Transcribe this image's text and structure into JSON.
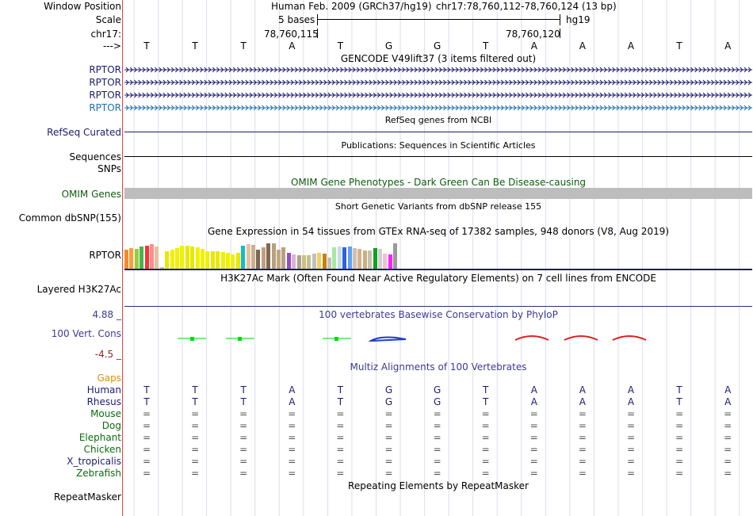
{
  "ruler": {
    "window_position_label": "Window Position",
    "scale_label": "Scale",
    "chrom_label": "chr17:",
    "arrow_label": "--->",
    "assembly": "Human Feb. 2009 (GRCh37/hg19)",
    "position": "chr17:78,760,112-78,760,124 (13 bp)",
    "scale_text": "5 bases",
    "db": "hg19",
    "pos_left": "78,760,115",
    "pos_right": "78,760,120"
  },
  "bases": [
    "T",
    "T",
    "T",
    "A",
    "T",
    "G",
    "G",
    "T",
    "A",
    "A",
    "A",
    "T",
    "A"
  ],
  "gencode": {
    "title": "GENCODE V49lift37 (3 items filtered out)",
    "items": [
      "RPTOR",
      "RPTOR",
      "RPTOR",
      "RPTOR"
    ],
    "colors": [
      "#1c1c70",
      "#1c1c70",
      "#1c1c70",
      "#1f6fa8"
    ]
  },
  "refseq": {
    "title": "RefSeq genes from NCBI",
    "label": "RefSeq Curated"
  },
  "publications": {
    "title": "Publications: Sequences in Scientific Articles",
    "label": "Sequences"
  },
  "snps_label": "SNPs",
  "omim": {
    "title": "OMIM Gene Phenotypes - Dark Green Can Be Disease-causing",
    "label": "OMIM Genes"
  },
  "dbsnp": {
    "title": "Short Genetic Variants from dbSNP release 155",
    "label": "Common dbSNP(155)"
  },
  "gtex": {
    "title": "Gene Expression in 54 tissues from GTEx RNA-seq of 17382 samples, 948 donors (V8, Aug 2019)",
    "label": "RPTOR",
    "levels": [
      0.6,
      0.65,
      0.62,
      0.7,
      0.72,
      0.78,
      0.7,
      0.05,
      0.55,
      0.6,
      0.66,
      0.72,
      0.72,
      0.7,
      0.68,
      0.62,
      0.55,
      0.56,
      0.55,
      0.52,
      0.5,
      0.45,
      0.5,
      0.72,
      0.78,
      0.75,
      0.6,
      0.68,
      0.8,
      0.8,
      0.6,
      0.68,
      0.5,
      0.45,
      0.42,
      0.42,
      0.42,
      0.48,
      0.5,
      0.48,
      0.35,
      0.68,
      0.7,
      0.68,
      0.7,
      0.64,
      0.62,
      0.58,
      0.58,
      0.64,
      0.62,
      0.48,
      0.45,
      0.8
    ],
    "colors": [
      "#f28c28",
      "#f5a03c",
      "#9acd32",
      "#4caf50",
      "#ff3030",
      "#ff8c8c",
      "#e8c0a0",
      "#c0c0c0",
      "#e8e800",
      "#f0f000",
      "#f0f000",
      "#f0f000",
      "#e8e800",
      "#e8e800",
      "#f0f000",
      "#f0f000",
      "#f0f000",
      "#e8e800",
      "#e8e800",
      "#f0f000",
      "#f0f000",
      "#f0f000",
      "#e8e800",
      "#10c0c0",
      "#e8c0a0",
      "#c8b090",
      "#806850",
      "#c0a080",
      "#806850",
      "#b8a080",
      "#c0a880",
      "#b8a080",
      "#9050c0",
      "#e0b0d0",
      "#b0a090",
      "#c8c080",
      "#c0c090",
      "#c0c0c0",
      "#f0d060",
      "#c88000",
      "#c0c0c0",
      "#a8e8a0",
      "#c0e0e0",
      "#3060e0",
      "#60a0f0",
      "#d0c0b0",
      "#d8b090",
      "#c8b080",
      "#c8c0b0",
      "#10a020",
      "#d0d0d0",
      "#f0c0d0",
      "#ff20ff",
      "#9a9a9a"
    ]
  },
  "h3k27ac": {
    "title": "H3K27Ac Mark (Often Found Near Active Regulatory Elements) on 7 cell lines from ENCODE",
    "label": "Layered H3K27Ac"
  },
  "phylop": {
    "title": "100 vertebrates Basewise Conservation by PhyloP",
    "label": "100 Vert. Cons",
    "max_label": "4.88 _",
    "min_label": "-4.5 _"
  },
  "multiz": {
    "title": "Multiz Alignments of 100 Vertebrates",
    "gaps_label": "Gaps",
    "species": [
      {
        "name": "Human",
        "color": "#1c1c70",
        "seq": [
          "T",
          "T",
          "T",
          "A",
          "T",
          "G",
          "G",
          "T",
          "A",
          "A",
          "A",
          "T",
          "A"
        ]
      },
      {
        "name": "Rhesus",
        "color": "#1c1c70",
        "seq": [
          "T",
          "T",
          "T",
          "A",
          "T",
          "G",
          "G",
          "T",
          "A",
          "A",
          "A",
          "T",
          "A"
        ]
      },
      {
        "name": "Mouse",
        "color": "#0d6b0d",
        "seq": [
          "=",
          "=",
          "=",
          "=",
          "=",
          "=",
          "=",
          "=",
          "=",
          "=",
          "=",
          "=",
          "="
        ]
      },
      {
        "name": "Dog",
        "color": "#0d6b0d",
        "seq": [
          "=",
          "=",
          "=",
          "=",
          "=",
          "=",
          "=",
          "=",
          "=",
          "=",
          "=",
          "=",
          "="
        ]
      },
      {
        "name": "Elephant",
        "color": "#0d6b0d",
        "seq": [
          "=",
          "=",
          "=",
          "=",
          "=",
          "=",
          "=",
          "=",
          "=",
          "=",
          "=",
          "=",
          "="
        ]
      },
      {
        "name": "Chicken",
        "color": "#0d6b0d",
        "seq": [
          "=",
          "=",
          "=",
          "=",
          "=",
          "=",
          "=",
          "=",
          "=",
          "=",
          "=",
          "=",
          "="
        ]
      },
      {
        "name": "X_tropicalis",
        "color": "#1c1c70",
        "seq": [
          "=",
          "=",
          "=",
          "=",
          "=",
          "=",
          "=",
          "=",
          "=",
          "=",
          "=",
          "=",
          "="
        ]
      },
      {
        "name": "Zebrafish",
        "color": "#0d6b0d",
        "seq": [
          "=",
          "=",
          "=",
          "=",
          "=",
          "=",
          "=",
          "=",
          "=",
          "=",
          "=",
          "=",
          "="
        ]
      }
    ]
  },
  "repeatmasker": {
    "title": "Repeating Elements by RepeatMasker",
    "label": "RepeatMasker"
  }
}
